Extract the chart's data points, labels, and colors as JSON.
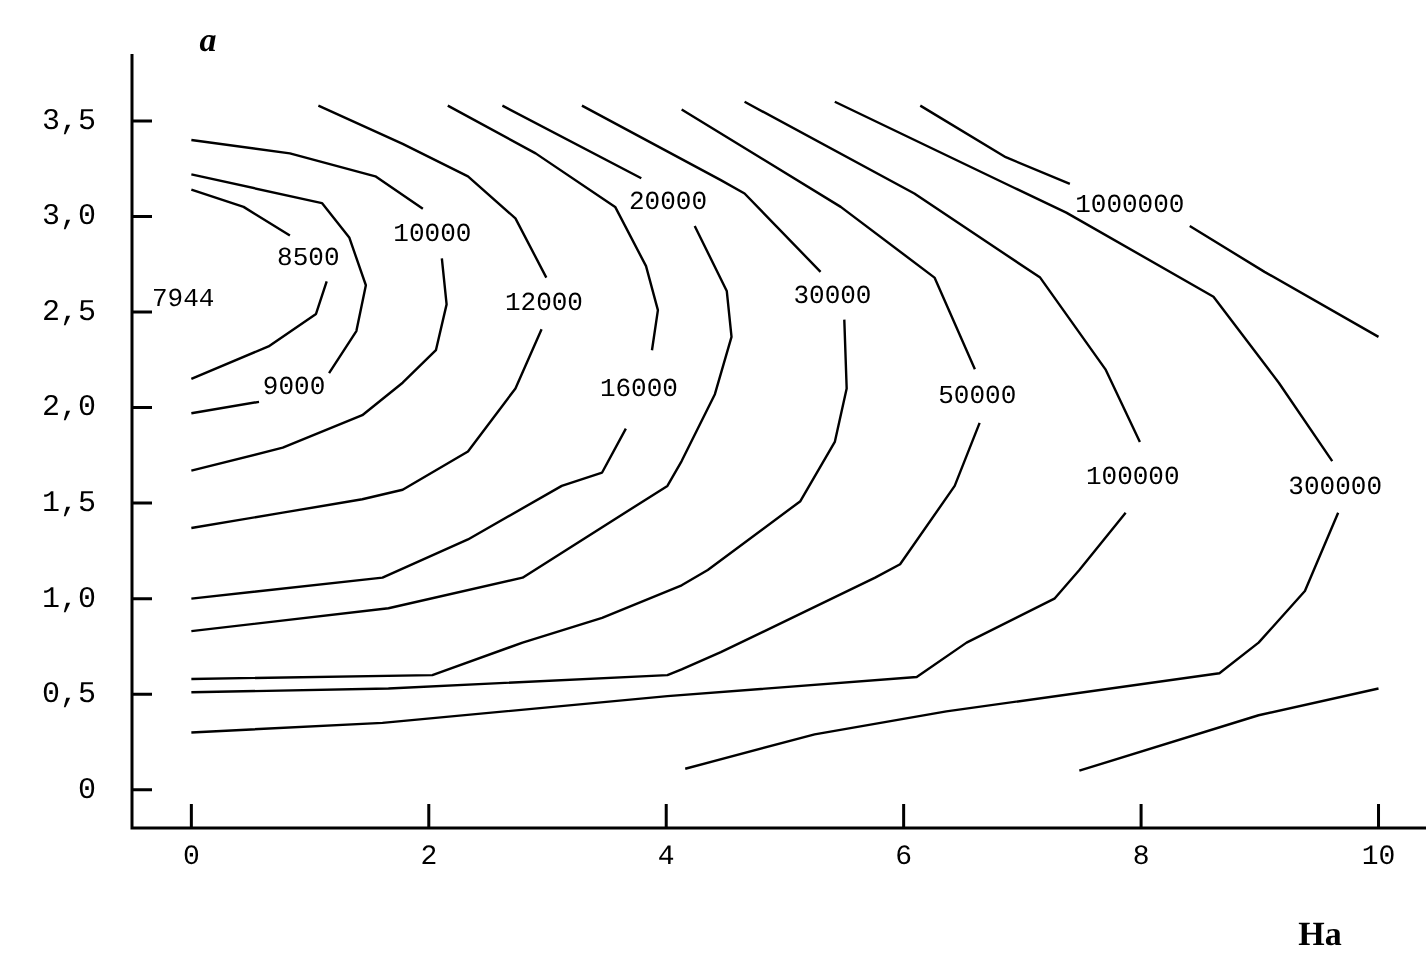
{
  "chart_data": {
    "type": "line",
    "xlabel": "Ha",
    "ylabel": "a",
    "xlim": [
      -0.5,
      10.4
    ],
    "ylim": [
      -0.2,
      3.85
    ],
    "xticks": [
      0,
      2,
      4,
      6,
      8,
      10
    ],
    "yticks": [
      0,
      {
        "value": 0.5,
        "label": "0,5"
      },
      {
        "value": 1,
        "label": "1,0"
      },
      {
        "value": 1.5,
        "label": "1,5"
      },
      {
        "value": 2,
        "label": "2,0"
      },
      {
        "value": 2.5,
        "label": "2,5"
      },
      {
        "value": 3,
        "label": "3,0"
      },
      {
        "value": 3.5,
        "label": "3,5"
      }
    ],
    "grid": false,
    "legend": false,
    "marker": "none",
    "line_style": "solid",
    "series": [
      {
        "name": "8500",
        "color": "#000000",
        "x": [
          0,
          0.44,
          0.83,
          null,
          1.14,
          1.05,
          0.65,
          0
        ],
        "values": [
          3.14,
          3.05,
          2.9,
          null,
          2.66,
          2.49,
          2.32,
          2.15
        ]
      },
      {
        "name": "9000",
        "color": "#000000",
        "x": [
          0,
          1.1,
          1.33,
          1.47,
          1.39,
          1.16,
          null,
          0.57,
          0
        ],
        "values": [
          3.22,
          3.07,
          2.89,
          2.64,
          2.4,
          2.18,
          null,
          2.03,
          1.97
        ]
      },
      {
        "name": "10000",
        "color": "#000000",
        "x": [
          0,
          0.83,
          1.55,
          1.95,
          null,
          2.11,
          2.15,
          2.06,
          1.78,
          1.44,
          0.77,
          0
        ],
        "values": [
          3.4,
          3.33,
          3.21,
          3.04,
          null,
          2.78,
          2.54,
          2.3,
          2.13,
          1.96,
          1.79,
          1.67
        ]
      },
      {
        "name": "12000",
        "color": "#000000",
        "x": [
          1.07,
          1.78,
          2.33,
          2.73,
          2.99,
          null,
          2.95,
          2.73,
          2.33,
          1.78,
          1.44,
          0.77,
          0
        ],
        "values": [
          3.58,
          3.38,
          3.21,
          2.99,
          2.68,
          null,
          2.41,
          2.1,
          1.77,
          1.57,
          1.52,
          1.45,
          1.37
        ]
      },
      {
        "name": "16000",
        "color": "#000000",
        "x": [
          2.16,
          2.9,
          3.57,
          3.83,
          3.93,
          3.88,
          null,
          3.66,
          3.46,
          3.12,
          2.33,
          1.61,
          0
        ],
        "values": [
          3.58,
          3.33,
          3.05,
          2.74,
          2.51,
          2.3,
          null,
          1.89,
          1.66,
          1.59,
          1.31,
          1.11,
          1.0
        ]
      },
      {
        "name": "20000",
        "color": "#000000",
        "x": [
          2.62,
          3.79,
          null,
          4.24,
          4.51,
          4.55,
          4.41,
          4.13,
          4.01,
          2.79,
          1.66,
          0
        ],
        "values": [
          3.58,
          3.2,
          null,
          2.95,
          2.61,
          2.37,
          2.07,
          1.72,
          1.59,
          1.11,
          0.95,
          0.83
        ]
      },
      {
        "name": "30000",
        "color": "#000000",
        "x": [
          3.29,
          4.46,
          4.66,
          5.3,
          null,
          5.5,
          5.52,
          5.42,
          5.13,
          4.35,
          4.13,
          3.46,
          2.79,
          2.03,
          0
        ],
        "values": [
          3.58,
          3.19,
          3.12,
          2.71,
          null,
          2.46,
          2.1,
          1.82,
          1.51,
          1.15,
          1.07,
          0.9,
          0.77,
          0.6,
          0.58
        ]
      },
      {
        "name": "50000",
        "color": "#000000",
        "x": [
          4.13,
          5.47,
          6.26,
          6.6,
          null,
          6.64,
          6.43,
          5.97,
          5.76,
          4.46,
          4.13,
          4.01,
          1.66,
          0
        ],
        "values": [
          3.56,
          3.05,
          2.68,
          2.2,
          null,
          1.92,
          1.59,
          1.18,
          1.11,
          0.72,
          0.63,
          0.6,
          0.53,
          0.51
        ]
      },
      {
        "name": "100000",
        "color": "#000000",
        "x": [
          4.66,
          6.09,
          7.15,
          7.7,
          7.99,
          null,
          7.87,
          7.48,
          7.27,
          6.53,
          6.11,
          4.01,
          1.61,
          0
        ],
        "values": [
          3.6,
          3.12,
          2.68,
          2.2,
          1.82,
          null,
          1.45,
          1.15,
          1.0,
          0.77,
          0.59,
          0.49,
          0.35,
          0.3
        ]
      },
      {
        "name": "300000",
        "color": "#000000",
        "x": [
          5.42,
          6.93,
          7.37,
          8.61,
          9.16,
          9.61,
          null,
          9.66,
          9.38,
          8.99,
          8.66,
          6.36,
          5.25,
          4.16
        ],
        "values": [
          3.6,
          3.15,
          3.02,
          2.58,
          2.13,
          1.72,
          null,
          1.45,
          1.04,
          0.77,
          0.61,
          0.41,
          0.29,
          0.11
        ]
      },
      {
        "name": "1000000",
        "color": "#000000",
        "x": [
          6.14,
          6.86,
          7.4,
          null,
          8.41,
          9.04,
          10.0,
          null,
          7.48,
          8.99,
          10.0
        ],
        "values": [
          3.58,
          3.31,
          3.17,
          null,
          2.95,
          2.71,
          2.37,
          null,
          0.1,
          0.39,
          0.53
        ]
      }
    ],
    "annotations": [
      "7944"
    ]
  }
}
